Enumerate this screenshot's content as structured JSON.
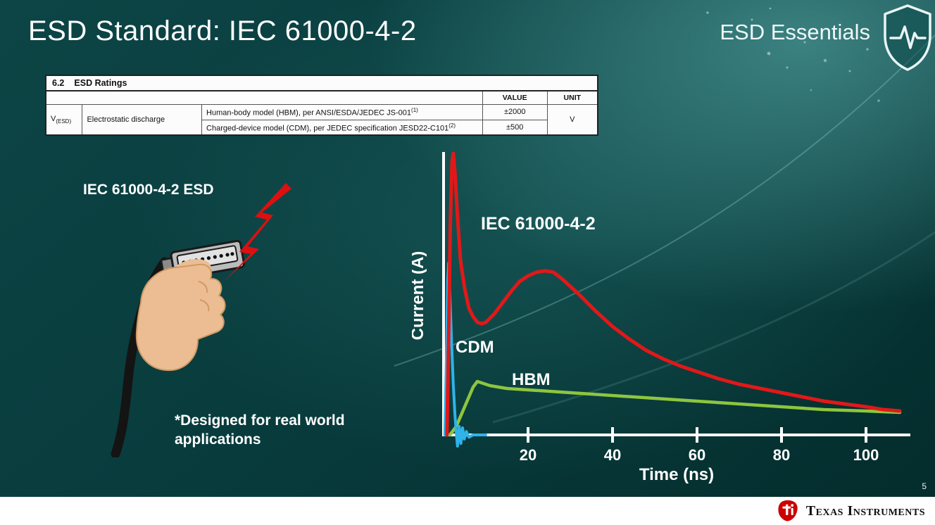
{
  "slide": {
    "title": "ESD Standard: IEC 61000-4-2",
    "brand_series": "ESD Essentials",
    "page_number": "5",
    "illustration_label": "IEC 61000-4-2 ESD",
    "footnote_line1": "*Designed for real world",
    "footnote_line2": "applications"
  },
  "table": {
    "section_number": "6.2",
    "section_title": "ESD Ratings",
    "headers": {
      "value": "VALUE",
      "unit": "UNIT"
    },
    "symbol": "V",
    "symbol_sub": "(ESD)",
    "parameter": "Electrostatic discharge",
    "rows": [
      {
        "description": "Human-body model (HBM), per ANSI/ESDA/JEDEC JS-001",
        "ref": "(1)",
        "value": "±2000"
      },
      {
        "description": "Charged-device model (CDM), per JEDEC specification JESD22-C101",
        "ref": "(2)",
        "value": "±500"
      }
    ],
    "unit": "V"
  },
  "chart_data": {
    "type": "line",
    "title": "",
    "xlabel": "Time (ns)",
    "ylabel": "Current (A)",
    "x_ticks": [
      20,
      40,
      60,
      80,
      100
    ],
    "xlim": [
      0,
      110
    ],
    "ylim": [
      0,
      1
    ],
    "grid": false,
    "legend": "inline-labels",
    "note": "y values are relative current amplitude (unlabeled axis)",
    "series": [
      {
        "name": "IEC 61000-4-2",
        "color": "#e21818",
        "x": [
          0.8,
          1.2,
          1.6,
          2.0,
          2.3,
          2.7,
          3.2,
          4,
          5,
          6,
          7,
          8,
          9,
          10,
          12,
          14,
          16,
          18,
          20,
          22,
          24,
          26,
          28,
          32,
          36,
          40,
          44,
          48,
          52,
          56,
          60,
          65,
          70,
          75,
          80,
          85,
          90,
          95,
          100,
          104,
          108
        ],
        "y": [
          0,
          0.35,
          0.75,
          0.97,
          1.0,
          0.93,
          0.8,
          0.62,
          0.52,
          0.45,
          0.42,
          0.4,
          0.395,
          0.4,
          0.43,
          0.47,
          0.51,
          0.545,
          0.565,
          0.578,
          0.583,
          0.578,
          0.555,
          0.5,
          0.44,
          0.385,
          0.34,
          0.3,
          0.27,
          0.245,
          0.225,
          0.2,
          0.18,
          0.165,
          0.15,
          0.135,
          0.12,
          0.11,
          0.1,
          0.09,
          0.085
        ]
      },
      {
        "name": "CDM",
        "color": "#2fb3e8",
        "x": [
          0.3,
          0.7,
          1.0,
          1.2,
          1.5,
          1.9,
          2.3,
          2.7,
          3.0,
          3.3,
          3.7,
          4.1,
          4.5,
          4.9,
          5.4,
          6.0,
          7.0,
          8.5,
          10
        ],
        "y": [
          0,
          0.3,
          0.55,
          0.61,
          0.5,
          0.33,
          0.18,
          0.07,
          0.01,
          -0.04,
          0.03,
          -0.03,
          0.025,
          -0.015,
          0.012,
          -0.008,
          0,
          0,
          0
        ]
      },
      {
        "name": "HBM",
        "color": "#8dc63f",
        "x": [
          1.5,
          3,
          5,
          7,
          8,
          9,
          11,
          15,
          20,
          30,
          40,
          50,
          60,
          70,
          80,
          90,
          100,
          108
        ],
        "y": [
          0,
          0.03,
          0.1,
          0.17,
          0.19,
          0.185,
          0.175,
          0.165,
          0.16,
          0.15,
          0.14,
          0.13,
          0.12,
          0.11,
          0.1,
          0.09,
          0.085,
          0.08
        ]
      }
    ]
  },
  "footer": {
    "brand": "Texas Instruments"
  },
  "colors": {
    "background_dark": "#042c2c",
    "background_light": "#2e8585",
    "esd_gun_red": "#e21818",
    "cdm_cyan": "#2fb3e8",
    "hbm_green": "#8dc63f",
    "ti_red": "#cc0000"
  }
}
